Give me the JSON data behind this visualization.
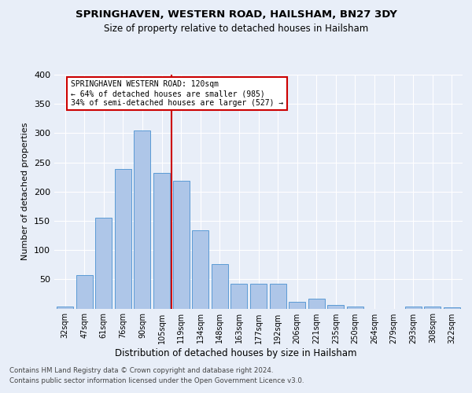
{
  "title1": "SPRINGHAVEN, WESTERN ROAD, HAILSHAM, BN27 3DY",
  "title2": "Size of property relative to detached houses in Hailsham",
  "xlabel": "Distribution of detached houses by size in Hailsham",
  "ylabel": "Number of detached properties",
  "categories": [
    "32sqm",
    "47sqm",
    "61sqm",
    "76sqm",
    "90sqm",
    "105sqm",
    "119sqm",
    "134sqm",
    "148sqm",
    "163sqm",
    "177sqm",
    "192sqm",
    "206sqm",
    "221sqm",
    "235sqm",
    "250sqm",
    "264sqm",
    "279sqm",
    "293sqm",
    "308sqm",
    "322sqm"
  ],
  "values": [
    4,
    57,
    155,
    238,
    305,
    232,
    219,
    134,
    76,
    42,
    43,
    43,
    12,
    17,
    6,
    4,
    0,
    0,
    4,
    3,
    2
  ],
  "bar_color": "#aec6e8",
  "bar_edge_color": "#5b9bd5",
  "vline_x_index": 5.5,
  "vline_color": "#cc0000",
  "annotation_text": "SPRINGHAVEN WESTERN ROAD: 120sqm\n← 64% of detached houses are smaller (985)\n34% of semi-detached houses are larger (527) →",
  "annotation_box_color": "#ffffff",
  "annotation_box_edge": "#cc0000",
  "footer1": "Contains HM Land Registry data © Crown copyright and database right 2024.",
  "footer2": "Contains public sector information licensed under the Open Government Licence v3.0.",
  "bg_color": "#e8eef8",
  "plot_bg_color": "#e8eef8",
  "ylim": [
    0,
    400
  ],
  "yticks": [
    0,
    50,
    100,
    150,
    200,
    250,
    300,
    350,
    400
  ]
}
